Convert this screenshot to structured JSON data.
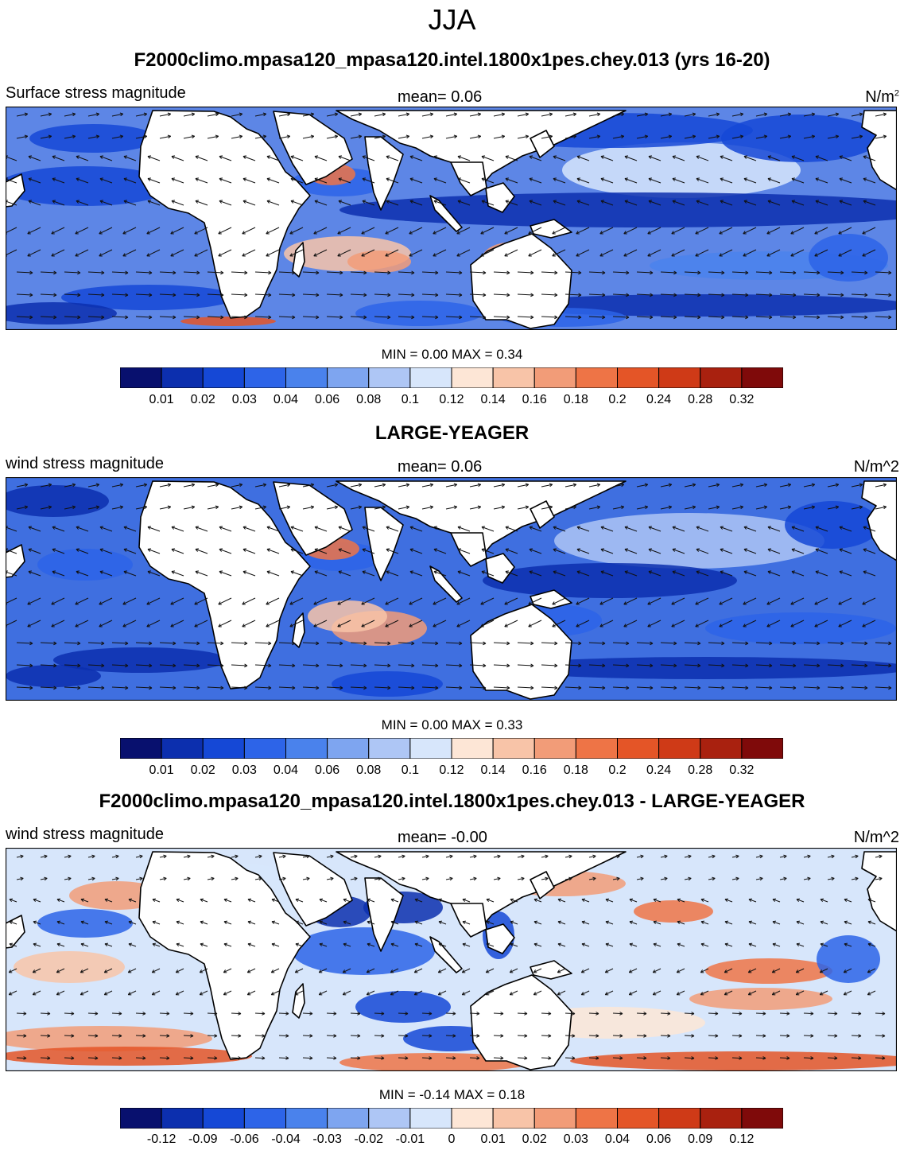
{
  "figure_title": "JJA",
  "colors": {
    "land": "#ffffff",
    "coast": "#000000",
    "arrow": "#111111",
    "palette": [
      "#08106e",
      "#0c2fae",
      "#1548d6",
      "#2d64e8",
      "#4a82ec",
      "#7ea5f0",
      "#aec6f5",
      "#d7e6fb",
      "#fde6d6",
      "#f8c4a8",
      "#f29c78",
      "#ee7446",
      "#e45527",
      "#cf3a17",
      "#a9210f",
      "#7f0a0a"
    ]
  },
  "panels": [
    {
      "title": "F2000climo.mpasa120_mpasa120.intel.1800x1pes.chey.013 (yrs 16-20)",
      "left_string": "Surface stress magnitude",
      "center_string": "mean=   0.06",
      "units_base": "N/m",
      "units_sup": "2",
      "minmax": "MIN =   0.00 MAX =   0.34",
      "colorbar_labels": [
        "0.01",
        "0.02",
        "0.03",
        "0.04",
        "0.06",
        "0.08",
        "0.1",
        "0.12",
        "0.14",
        "0.16",
        "0.18",
        "0.2",
        "0.24",
        "0.28",
        "0.32"
      ]
    },
    {
      "title": "LARGE-YEAGER",
      "left_string": "wind stress magnitude",
      "center_string": "mean=   0.06",
      "units": "N/m^2",
      "minmax": "MIN =   0.00 MAX =   0.33",
      "colorbar_labels": [
        "0.01",
        "0.02",
        "0.03",
        "0.04",
        "0.06",
        "0.08",
        "0.1",
        "0.12",
        "0.14",
        "0.16",
        "0.18",
        "0.2",
        "0.24",
        "0.28",
        "0.32"
      ]
    },
    {
      "title": "F2000climo.mpasa120_mpasa120.intel.1800x1pes.chey.013 - LARGE-YEAGER",
      "left_string": "wind stress magnitude",
      "center_string": "mean=  -0.00",
      "units": "N/m^2",
      "minmax": "MIN =  -0.14 MAX =   0.18",
      "colorbar_labels": [
        "-0.12",
        "-0.09",
        "-0.06",
        "-0.04",
        "-0.03",
        "-0.02",
        "-0.01",
        "0",
        "0.01",
        "0.02",
        "0.03",
        "0.04",
        "0.06",
        "0.09",
        "0.12"
      ]
    }
  ]
}
